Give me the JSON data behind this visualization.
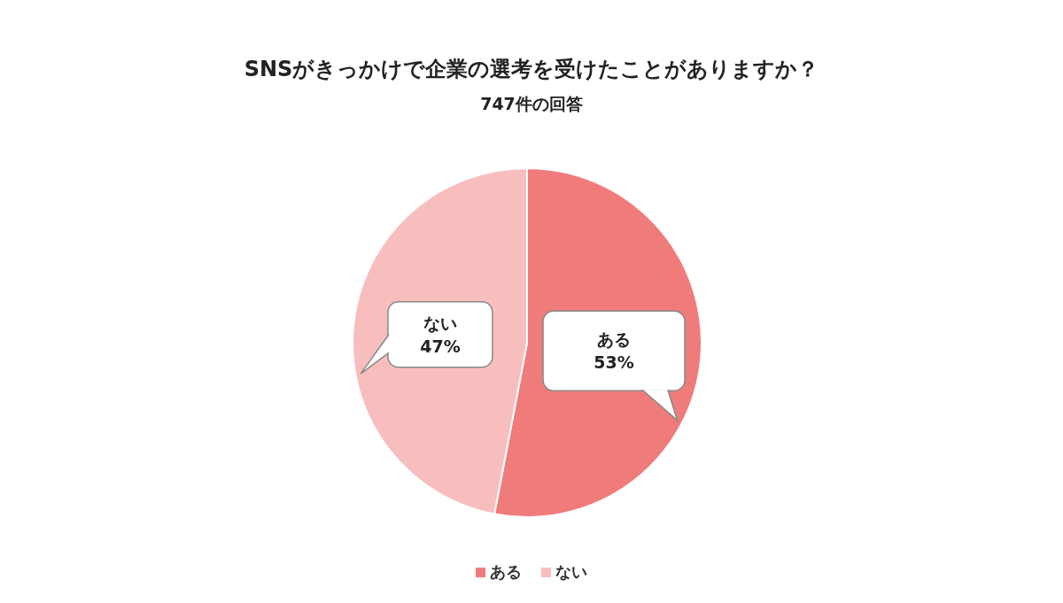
{
  "chart_data": {
    "type": "pie",
    "title": "SNSがきっかけで企業の選考を受けたことがありますか？",
    "subtitle": "747件の回答",
    "categories": [
      "ある",
      "ない"
    ],
    "values": [
      53,
      47
    ],
    "value_labels": [
      "53%",
      "47%"
    ],
    "colors": [
      "#f07b7b",
      "#f8bebe"
    ],
    "legend": "bottom"
  }
}
